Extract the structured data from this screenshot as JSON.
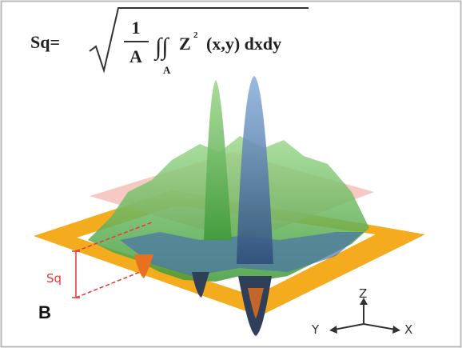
{
  "formula": {
    "lhs": "Sq=",
    "numerator": "1",
    "denominator": "A",
    "integrand": "Z",
    "exponent": "2",
    "variables": "(x,y) dxdy",
    "domain": "A"
  },
  "labels": {
    "sq": "Sq",
    "panel": "B"
  },
  "axes": {
    "z": "Z",
    "y": "Y",
    "x": "X"
  }
}
